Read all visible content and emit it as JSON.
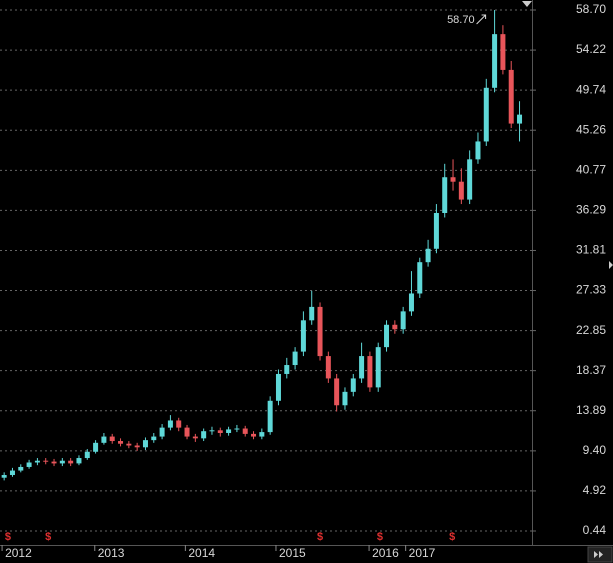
{
  "chart_data": {
    "type": "candlestick",
    "open": [
      6.4,
      6.7,
      7.2,
      7.6,
      8.1,
      8.3,
      8.2,
      8.0,
      8.3,
      8.0,
      8.6,
      9.3,
      10.3,
      11.0,
      10.5,
      10.2,
      10.0,
      9.8,
      10.6,
      11.0,
      12.0,
      12.8,
      12.0,
      11.0,
      10.8,
      11.6,
      11.7,
      11.4,
      11.8,
      11.9,
      11.3,
      11.0,
      11.5,
      15.0,
      18.0,
      19.0,
      20.5,
      24.0,
      25.5,
      20.0,
      17.5,
      14.5,
      16.0,
      17.5,
      20.0,
      16.5,
      21.0,
      23.5,
      23.0,
      25.0,
      27.0,
      30.5,
      32.0,
      36.0,
      40.0,
      39.5,
      37.5,
      42.0,
      44.0,
      50.0,
      56.0,
      52.0,
      46.0
    ],
    "high": [
      7.0,
      7.5,
      7.9,
      8.4,
      8.6,
      8.6,
      8.5,
      8.6,
      8.6,
      8.9,
      9.6,
      10.6,
      11.4,
      11.3,
      10.8,
      10.5,
      10.3,
      10.9,
      11.4,
      12.4,
      13.4,
      13.1,
      12.3,
      11.3,
      11.9,
      12.1,
      12.0,
      12.1,
      12.3,
      12.2,
      11.6,
      11.9,
      15.5,
      18.5,
      19.8,
      21.0,
      25.0,
      27.3,
      26.0,
      20.5,
      18.0,
      16.5,
      18.0,
      21.5,
      20.5,
      21.5,
      24.0,
      24.0,
      25.5,
      29.5,
      31.0,
      33.0,
      37.0,
      41.5,
      42.0,
      41.0,
      43.0,
      45.0,
      51.0,
      58.7,
      57.0,
      53.0,
      48.5
    ],
    "low": [
      6.1,
      6.5,
      7.0,
      7.4,
      7.8,
      7.9,
      7.7,
      7.7,
      7.7,
      7.8,
      8.4,
      9.1,
      10.1,
      10.2,
      9.9,
      9.7,
      9.4,
      9.5,
      10.3,
      10.7,
      11.7,
      11.6,
      10.7,
      10.4,
      10.5,
      11.2,
      11.0,
      11.1,
      11.5,
      11.0,
      10.7,
      10.7,
      11.2,
      14.5,
      17.5,
      18.5,
      20.0,
      23.5,
      19.5,
      17.0,
      13.8,
      14.0,
      15.5,
      17.0,
      16.0,
      16.0,
      20.5,
      22.5,
      22.5,
      24.5,
      26.5,
      30.0,
      31.5,
      35.5,
      38.5,
      37.0,
      37.0,
      41.5,
      43.5,
      49.5,
      51.5,
      45.5,
      44.0
    ],
    "close": [
      6.7,
      7.2,
      7.6,
      8.1,
      8.3,
      8.2,
      8.0,
      8.3,
      8.0,
      8.6,
      9.3,
      10.3,
      11.0,
      10.5,
      10.2,
      10.0,
      9.8,
      10.6,
      11.0,
      12.0,
      12.8,
      12.0,
      11.0,
      10.8,
      11.6,
      11.7,
      11.4,
      11.8,
      11.9,
      11.3,
      11.0,
      11.5,
      15.0,
      18.0,
      19.0,
      20.5,
      24.0,
      25.5,
      20.0,
      17.5,
      14.5,
      16.0,
      17.5,
      20.0,
      16.5,
      21.0,
      23.5,
      23.0,
      25.0,
      27.0,
      30.5,
      32.0,
      36.0,
      40.0,
      39.5,
      37.5,
      42.0,
      44.0,
      50.0,
      56.0,
      52.0,
      46.0,
      47.0
    ],
    "up_color": "#5fd8d8",
    "down_color": "#e8555a",
    "ylim": [
      0.44,
      58.7
    ],
    "yticks": [
      {
        "value": 58.7,
        "label": "58.70"
      },
      54.22,
      49.74,
      45.26,
      40.77,
      36.29,
      31.81,
      27.33,
      22.85,
      18.37,
      13.89,
      {
        "value": 9.4,
        "label": "9.40"
      },
      4.92,
      0.44
    ],
    "xlim": [
      -0.5,
      63.5
    ],
    "xticks": [
      {
        "value": -0.25,
        "label": "2012"
      },
      {
        "value": 10.9,
        "label": "2013"
      },
      {
        "value": 21.8,
        "label": "2014"
      },
      {
        "value": 32.7,
        "label": "2015"
      },
      {
        "value": 43.9,
        "label": "2016"
      },
      {
        "value": 48.3,
        "label": "2017"
      }
    ],
    "dividends": {
      "label": "$",
      "color": "#e03030",
      "x": [
        0.46,
        5.3,
        38,
        45.2,
        53.9
      ]
    },
    "annotation": {
      "text": "58.70",
      "index": 59
    },
    "grid": true
  }
}
